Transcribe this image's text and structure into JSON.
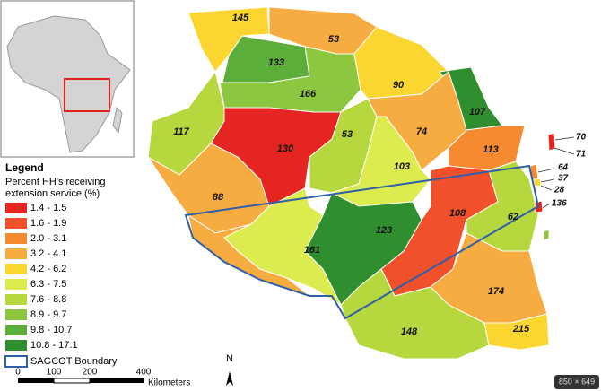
{
  "legend": {
    "title": "Legend",
    "subtitle_lines": [
      "Percent HH's receiving",
      "extension service (%)"
    ],
    "items": [
      {
        "label": "1.4 - 1.5",
        "color": "#e52521"
      },
      {
        "label": "1.6 - 1.9",
        "color": "#f0512a"
      },
      {
        "label": "2.0 - 3.1",
        "color": "#f58a30"
      },
      {
        "label": "3.2 - 4.1",
        "color": "#f7ac42"
      },
      {
        "label": "4.2 - 6.2",
        "color": "#fbd631"
      },
      {
        "label": "6.3 - 7.5",
        "color": "#dceb4d"
      },
      {
        "label": "7.6 - 8.8",
        "color": "#b6d73d"
      },
      {
        "label": "8.9 - 9.7",
        "color": "#8dc63f"
      },
      {
        "label": "9.8 - 10.7",
        "color": "#5cae3a"
      },
      {
        "label": "10.8 - 17.1",
        "color": "#2f8f2f"
      }
    ],
    "boundary": "SAGCOT Boundary"
  },
  "region_labels": [
    "145",
    "53",
    "133",
    "166",
    "90",
    "107",
    "117",
    "130",
    "53",
    "74",
    "113",
    "103",
    "88",
    "108",
    "62",
    "123",
    "161",
    "174",
    "148",
    "215"
  ],
  "island_labels": [
    "70",
    "71",
    "64",
    "37",
    "28",
    "136"
  ],
  "scale_bar": {
    "ticks": [
      "0",
      "100",
      "200",
      "400"
    ],
    "unit": "Kilometers"
  },
  "north": "N",
  "image_size": "850 × 649"
}
